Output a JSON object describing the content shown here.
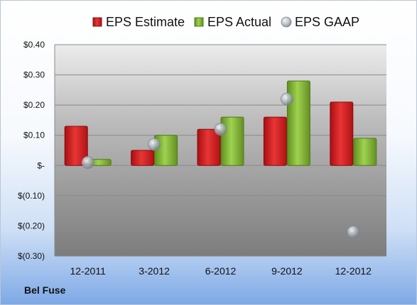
{
  "footer": {
    "company": "Bel Fuse"
  },
  "chart_data": {
    "type": "bar",
    "categories": [
      "12-2011",
      "3-2012",
      "6-2012",
      "9-2012",
      "12-2012"
    ],
    "series": [
      {
        "name": "EPS Estimate",
        "kind": "bar",
        "color": "#e02525",
        "values": [
          0.13,
          0.05,
          0.12,
          0.16,
          0.21
        ]
      },
      {
        "name": "EPS Actual",
        "kind": "bar",
        "color": "#8cc63e",
        "values": [
          0.02,
          0.1,
          0.16,
          0.28,
          0.09
        ]
      },
      {
        "name": "EPS GAAP",
        "kind": "scatter",
        "color": "#9aa7b5",
        "values": [
          0.01,
          0.07,
          0.12,
          0.22,
          -0.22
        ]
      }
    ],
    "yticks": [
      0.4,
      0.3,
      0.2,
      0.1,
      0,
      -0.1,
      -0.2,
      -0.3
    ],
    "ytick_labels": [
      "$0.40",
      "$0.30",
      "$0.20",
      "$0.10",
      "$-",
      "$(0.10)",
      "$(0.20)",
      "$(0.30)"
    ],
    "ylim": [
      -0.3,
      0.4
    ],
    "grid": true,
    "legend_position": "top"
  }
}
